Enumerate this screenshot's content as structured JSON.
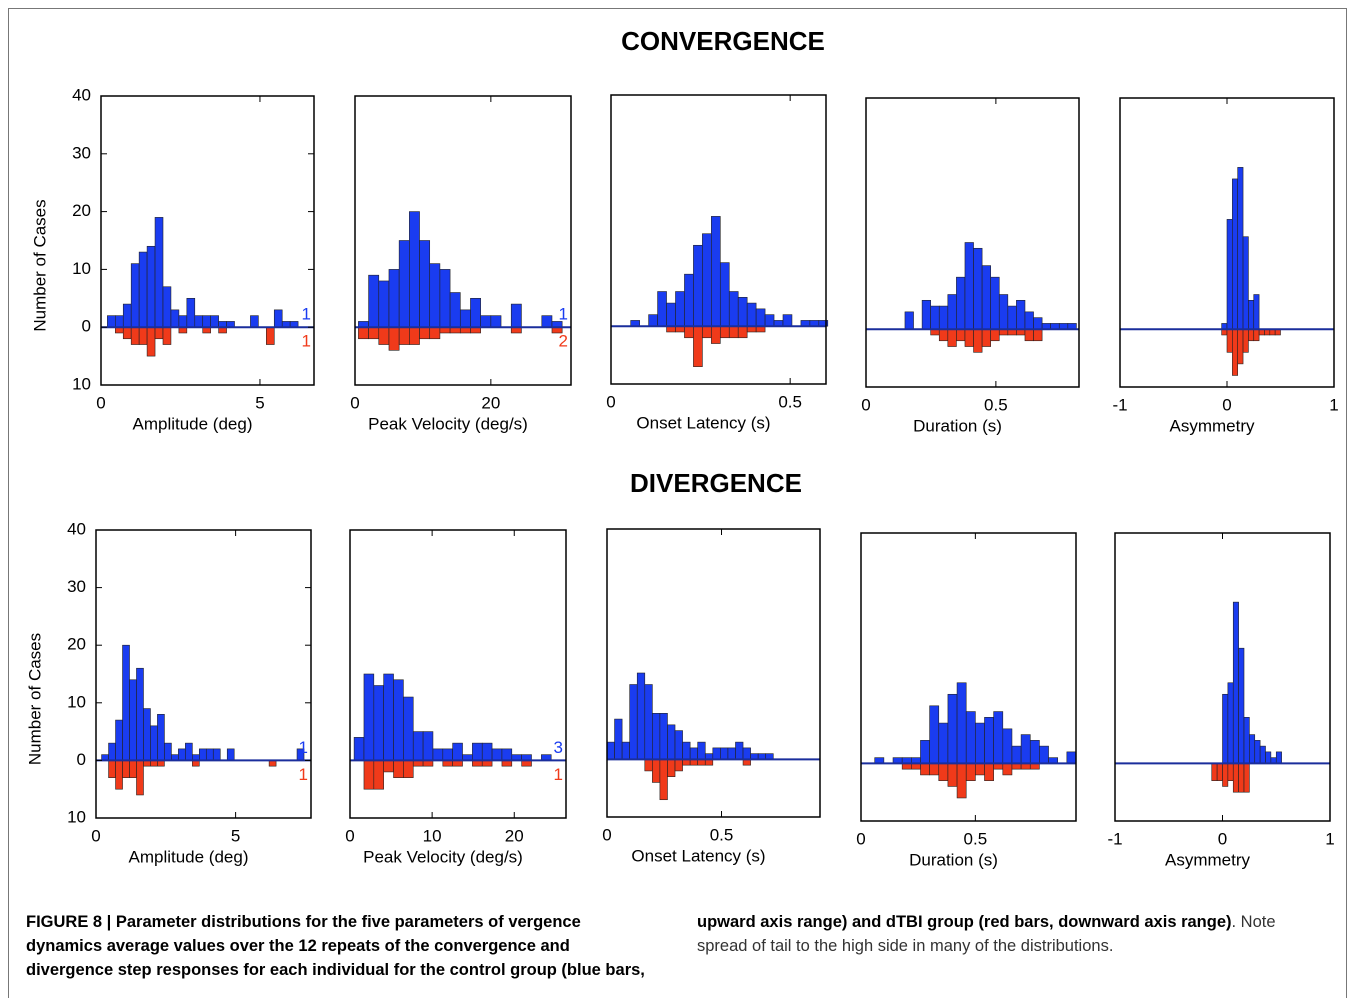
{
  "section_titles": [
    "CONVERGENCE",
    "DIVERGENCE"
  ],
  "caption": {
    "bold": "FIGURE 8 | Parameter distributions for the five parameters of vergence dynamics average values over the 12 repeats of the convergence and divergence step responses for each individual for the control group (blue bars, upward axis range) and dTBI group (red bars, downward axis range)",
    "text": ". Note spread of tail to the high side in many of the distributions."
  },
  "chart_data": [
    {
      "type": "histogram",
      "xlabel": "Amplitude (deg)",
      "ylabel": "Number of Cases",
      "xlim": [
        0,
        6.7
      ],
      "xticks": [
        0,
        5
      ],
      "ylim": [
        -10,
        40
      ],
      "yticks": [
        40,
        30,
        20,
        10,
        0,
        {
          "value": -10,
          "label": "10"
        }
      ],
      "bins": [
        0.2,
        0.45,
        0.7,
        0.95,
        1.2,
        1.45,
        1.7,
        1.95,
        2.2,
        2.45,
        2.7,
        2.95,
        3.2,
        3.45,
        3.7,
        3.95,
        4.2,
        4.45,
        4.7,
        4.95,
        5.2,
        5.45,
        5.7,
        5.95,
        6.2,
        6.45
      ],
      "series": [
        {
          "color": "#1a3cf0",
          "values": [
            2,
            2,
            4,
            11,
            13,
            14,
            19,
            7,
            3,
            2,
            5,
            2,
            2,
            2,
            1,
            1,
            0,
            0,
            2,
            0,
            0,
            3,
            1,
            1,
            0
          ],
          "overflow": 1
        },
        {
          "color": "#f03a1a",
          "direction": "down",
          "values": [
            0,
            1,
            2,
            3,
            3,
            5,
            2,
            3,
            0,
            1,
            0,
            0,
            1,
            0,
            1,
            0,
            0,
            0,
            0,
            0,
            3,
            0,
            0,
            0,
            0
          ],
          "overflow": 1
        }
      ]
    },
    {
      "type": "histogram",
      "xlabel": "Peak Velocity (deg/s)",
      "xlim": [
        0,
        31.8
      ],
      "xticks": [
        0,
        20
      ],
      "ylim": [
        -10,
        40
      ],
      "bins": [
        0.5,
        2,
        3.5,
        5,
        6.5,
        8,
        9.5,
        11,
        12.5,
        14,
        15.5,
        17,
        18.5,
        20,
        21.5,
        23,
        24.5,
        26,
        27.5,
        29,
        30.5
      ],
      "series": [
        {
          "color": "#1a3cf0",
          "values": [
            1,
            9,
            8,
            10,
            15,
            20,
            15,
            11,
            10,
            6,
            3,
            5,
            2,
            2,
            0,
            4,
            0,
            0,
            2,
            1
          ],
          "overflow": 1
        },
        {
          "color": "#f03a1a",
          "direction": "down",
          "values": [
            2,
            2,
            3,
            4,
            3,
            3,
            2,
            2,
            1,
            1,
            1,
            1,
            0,
            0,
            0,
            1,
            0,
            0,
            0,
            1
          ],
          "overflow": 2
        }
      ]
    },
    {
      "type": "histogram",
      "xlabel": "Onset Latency (s)",
      "xlim": [
        0,
        0.6
      ],
      "xticks": [
        0,
        0.5
      ],
      "ylim": [
        -10,
        40
      ],
      "bins": [
        0.03,
        0.055,
        0.08,
        0.105,
        0.13,
        0.155,
        0.18,
        0.205,
        0.23,
        0.255,
        0.28,
        0.305,
        0.33,
        0.355,
        0.38,
        0.405,
        0.43,
        0.455,
        0.48,
        0.505,
        0.53,
        0.555,
        0.58,
        0.605
      ],
      "series": [
        {
          "color": "#1a3cf0",
          "values": [
            0,
            1,
            0,
            2,
            6,
            4,
            6,
            9,
            14,
            16,
            19,
            11,
            6,
            5,
            4,
            3,
            2,
            1,
            2,
            0,
            1,
            1,
            1
          ]
        },
        {
          "color": "#f03a1a",
          "direction": "down",
          "values": [
            0,
            0,
            0,
            0,
            0,
            1,
            1,
            2,
            7,
            2,
            3,
            2,
            2,
            2,
            1,
            1,
            0,
            0,
            0,
            0,
            0,
            0,
            0
          ]
        }
      ]
    },
    {
      "type": "histogram",
      "xlabel": "Duration (s)",
      "xlim": [
        0,
        0.82
      ],
      "xticks": [
        0,
        0.5
      ],
      "ylim": [
        -10,
        40
      ],
      "bins": [
        0.15,
        0.183,
        0.216,
        0.249,
        0.282,
        0.315,
        0.348,
        0.381,
        0.414,
        0.447,
        0.48,
        0.513,
        0.546,
        0.579,
        0.612,
        0.645,
        0.678,
        0.711,
        0.744,
        0.777,
        0.81
      ],
      "series": [
        {
          "color": "#1a3cf0",
          "values": [
            3,
            0,
            5,
            4,
            4,
            6,
            9,
            15,
            14,
            11,
            9,
            6,
            4,
            5,
            3,
            2,
            1,
            1,
            1,
            1
          ]
        },
        {
          "color": "#f03a1a",
          "direction": "down",
          "values": [
            0,
            0,
            0,
            1,
            2,
            3,
            2,
            3,
            4,
            3,
            2,
            1,
            1,
            1,
            2,
            2,
            0,
            0,
            0,
            0
          ]
        }
      ]
    },
    {
      "type": "histogram",
      "xlabel": "Asymmetry",
      "xlim": [
        -1,
        1
      ],
      "xticks": [
        -1,
        0,
        1
      ],
      "ylim": [
        -10,
        40
      ],
      "bins": [
        -0.1,
        -0.05,
        0,
        0.05,
        0.1,
        0.15,
        0.2,
        0.25,
        0.3,
        0.35,
        0.4,
        0.45,
        0.5,
        0.55,
        0.6
      ],
      "series": [
        {
          "color": "#1a3cf0",
          "values": [
            0,
            1,
            19,
            26,
            28,
            16,
            5,
            6,
            0,
            0,
            0,
            0,
            0,
            0
          ]
        },
        {
          "color": "#f03a1a",
          "direction": "down",
          "values": [
            0,
            1,
            4,
            8,
            6,
            4,
            2,
            2,
            1,
            1,
            1,
            1,
            0,
            0
          ]
        }
      ]
    },
    {
      "type": "histogram",
      "xlabel": "Amplitude (deg)",
      "ylabel": "Number of Cases",
      "xlim": [
        0,
        7.7
      ],
      "xticks": [
        0,
        5
      ],
      "ylim": [
        -10,
        40
      ],
      "yticks": [
        40,
        30,
        20,
        10,
        0,
        {
          "value": -10,
          "label": "10"
        }
      ],
      "bins": [
        0.2,
        0.45,
        0.7,
        0.95,
        1.2,
        1.45,
        1.7,
        1.95,
        2.2,
        2.45,
        2.7,
        2.95,
        3.2,
        3.45,
        3.7,
        3.95,
        4.2,
        4.45,
        4.7,
        4.95,
        5.2,
        5.45,
        5.7,
        5.95,
        6.2,
        6.45,
        6.7,
        6.95,
        7.2,
        7.45,
        7.7
      ],
      "series": [
        {
          "color": "#1a3cf0",
          "values": [
            1,
            3,
            7,
            20,
            14,
            16,
            9,
            6,
            8,
            3,
            1,
            2,
            3,
            1,
            2,
            2,
            2,
            0,
            2,
            0,
            0,
            0,
            0,
            0,
            0,
            0,
            0,
            0,
            2,
            0
          ],
          "overflow": 1
        },
        {
          "color": "#f03a1a",
          "direction": "down",
          "values": [
            0,
            3,
            5,
            3,
            3,
            6,
            1,
            1,
            1,
            0,
            0,
            0,
            0,
            1,
            0,
            0,
            0,
            0,
            0,
            0,
            0,
            0,
            0,
            0,
            1,
            0,
            0,
            0,
            0,
            0
          ],
          "overflow": 1
        }
      ]
    },
    {
      "type": "histogram",
      "xlabel": "Peak Velocity (deg/s)",
      "xlim": [
        0,
        26.3
      ],
      "xticks": [
        0,
        10,
        20
      ],
      "ylim": [
        -10,
        40
      ],
      "bins": [
        0.5,
        1.7,
        2.9,
        4.1,
        5.3,
        6.5,
        7.7,
        8.9,
        10.1,
        11.3,
        12.5,
        13.7,
        14.9,
        16.1,
        17.3,
        18.5,
        19.7,
        20.9,
        22.1,
        23.3,
        24.5
      ],
      "series": [
        {
          "color": "#1a3cf0",
          "values": [
            4,
            15,
            13,
            15,
            14,
            11,
            5,
            5,
            2,
            2,
            3,
            1,
            3,
            3,
            2,
            2,
            1,
            1,
            0,
            1
          ],
          "overflow": 3
        },
        {
          "color": "#f03a1a",
          "direction": "down",
          "values": [
            0,
            5,
            5,
            2,
            3,
            3,
            1,
            1,
            0,
            1,
            1,
            0,
            1,
            1,
            0,
            1,
            0,
            1,
            0,
            0
          ],
          "overflow": 1
        }
      ]
    },
    {
      "type": "histogram",
      "xlabel": "Onset Latency (s)",
      "xlim": [
        0,
        0.93
      ],
      "xticks": [
        0,
        0.5
      ],
      "ylim": [
        -10,
        40
      ],
      "bins": [
        0,
        0.033,
        0.066,
        0.099,
        0.132,
        0.165,
        0.198,
        0.231,
        0.264,
        0.297,
        0.33,
        0.363,
        0.396,
        0.429,
        0.462,
        0.495,
        0.528,
        0.561,
        0.594,
        0.627,
        0.66,
        0.693,
        0.726,
        0.759,
        0.792,
        0.825,
        0.858,
        0.891,
        0.924
      ],
      "series": [
        {
          "color": "#1a3cf0",
          "values": [
            3,
            7,
            3,
            13,
            15,
            13,
            8,
            8,
            6,
            5,
            3,
            2,
            3,
            1,
            2,
            2,
            2,
            3,
            2,
            1,
            1,
            1,
            0,
            0,
            0,
            0,
            0,
            0
          ]
        },
        {
          "color": "#f03a1a",
          "direction": "down",
          "values": [
            0,
            0,
            0,
            0,
            0,
            2,
            4,
            7,
            3,
            2,
            1,
            1,
            1,
            1,
            0,
            0,
            0,
            0,
            1,
            0,
            0,
            0,
            0,
            0,
            0,
            0,
            0,
            0
          ]
        }
      ]
    },
    {
      "type": "histogram",
      "xlabel": "Duration (s)",
      "xlim": [
        0,
        0.94
      ],
      "xticks": [
        0,
        0.5
      ],
      "ylim": [
        -10,
        40
      ],
      "bins": [
        0.06,
        0.1,
        0.14,
        0.18,
        0.22,
        0.26,
        0.3,
        0.34,
        0.38,
        0.42,
        0.46,
        0.5,
        0.54,
        0.58,
        0.62,
        0.66,
        0.7,
        0.74,
        0.78,
        0.82,
        0.86,
        0.9,
        0.94
      ],
      "series": [
        {
          "color": "#1a3cf0",
          "values": [
            1,
            0,
            1,
            1,
            1,
            4,
            10,
            7,
            12,
            14,
            9,
            7,
            8,
            9,
            6,
            3,
            5,
            4,
            3,
            1,
            0,
            2
          ]
        },
        {
          "color": "#f03a1a",
          "direction": "down",
          "values": [
            0,
            0,
            0,
            1,
            1,
            2,
            2,
            3,
            4,
            6,
            3,
            2,
            3,
            1,
            2,
            1,
            1,
            1,
            0,
            0,
            0,
            0
          ]
        }
      ]
    },
    {
      "type": "histogram",
      "xlabel": "Asymmetry",
      "xlim": [
        -1,
        1
      ],
      "xticks": [
        -1,
        0,
        1
      ],
      "ylim": [
        -10,
        40
      ],
      "bins": [
        -0.2,
        -0.15,
        -0.1,
        -0.05,
        0,
        0.05,
        0.1,
        0.15,
        0.2,
        0.25,
        0.3,
        0.35,
        0.4,
        0.45,
        0.5,
        0.55,
        0.6,
        0.65,
        0.7,
        0.75,
        0.8
      ],
      "series": [
        {
          "color": "#1a3cf0",
          "values": [
            0,
            0,
            0,
            0,
            12,
            14,
            28,
            20,
            8,
            5,
            4,
            3,
            2,
            1,
            2,
            0,
            0,
            0,
            0,
            0
          ]
        },
        {
          "color": "#f03a1a",
          "direction": "down",
          "values": [
            0,
            0,
            3,
            3,
            4,
            3,
            5,
            5,
            5,
            0,
            0,
            0,
            0,
            0,
            0,
            0,
            0,
            0,
            0,
            0
          ]
        }
      ]
    }
  ]
}
